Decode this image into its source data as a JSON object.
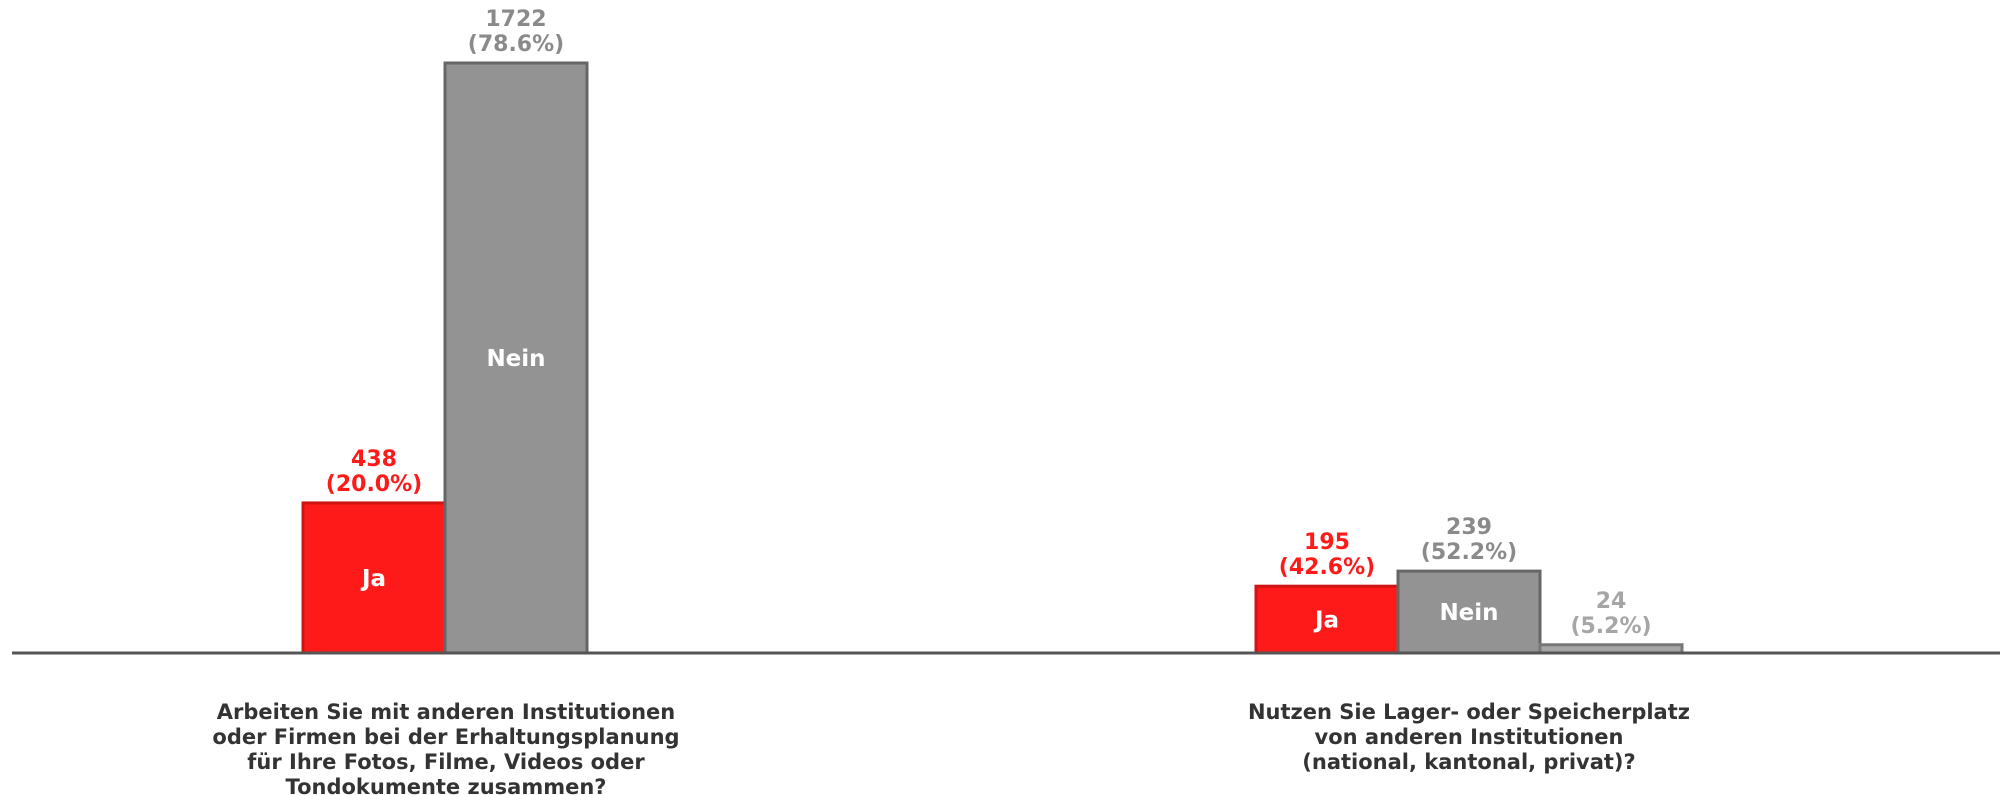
{
  "chart_data": {
    "type": "bar",
    "ylim": [
      0,
      1900
    ],
    "grid": false,
    "legend": "none",
    "colors": {
      "Ja": "#ff1a1a",
      "Nein": "#939393",
      "other": "#a6a6a6",
      "axis": "#555555",
      "question_text": "#333333"
    },
    "groups": [
      {
        "question_lines": [
          "Arbeiten Sie mit anderen Institutionen",
          "oder Firmen bei der Erhaltungsplanung",
          "für Ihre Fotos, Filme, Videos oder",
          "Tondokumente zusammen?"
        ],
        "bars": [
          {
            "name": "Ja",
            "value": 438,
            "value_text": "438",
            "pct_text": "(20.0%)",
            "inside_label": "Ja"
          },
          {
            "name": "Nein",
            "value": 1722,
            "value_text": "1722",
            "pct_text": "(78.6%)",
            "inside_label": "Nein"
          }
        ]
      },
      {
        "question_lines": [
          "Nutzen Sie Lager- oder Speicherplatz",
          "von anderen Institutionen",
          "(national, kantonal, privat)?"
        ],
        "bars": [
          {
            "name": "Ja",
            "value": 195,
            "value_text": "195",
            "pct_text": "(42.6%)",
            "inside_label": "Ja"
          },
          {
            "name": "Nein",
            "value": 239,
            "value_text": "239",
            "pct_text": "(52.2%)",
            "inside_label": "Nein"
          },
          {
            "name": "",
            "value": 24,
            "value_text": "24",
            "pct_text": "(5.2%)",
            "inside_label": ""
          }
        ]
      }
    ]
  }
}
